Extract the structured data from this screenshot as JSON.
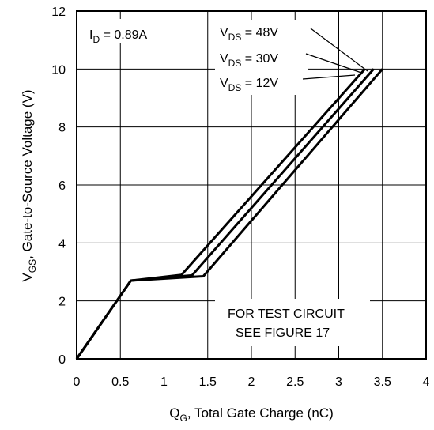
{
  "chart_data": {
    "type": "line",
    "title": "",
    "xlabel": "Q",
    "xlabel_sub": "G",
    "xlabel_rest": ", Total Gate Charge (nC)",
    "ylabel": "V",
    "ylabel_sub": "GS",
    "ylabel_rest": ", Gate-to-Source Voltage (V)",
    "xlim": [
      0,
      4
    ],
    "ylim": [
      0,
      12
    ],
    "grid": true,
    "x_ticks": [
      "0",
      "0.5",
      "1",
      "1.5",
      "2",
      "2.5",
      "3",
      "3.5",
      "4"
    ],
    "y_ticks": [
      "0",
      "2",
      "4",
      "6",
      "8",
      "10",
      "12"
    ],
    "condition": {
      "main": "I",
      "sub": "D",
      "rest": " = 0.89A"
    },
    "test_note": [
      "FOR TEST CIRCUIT",
      "SEE FIGURE 17"
    ],
    "series": [
      {
        "name": "V_DS = 48V",
        "label_main": "V",
        "label_sub": "DS",
        "label_rest": " = 48V",
        "x": [
          0,
          0.62,
          1.2,
          3.3
        ],
        "y": [
          0,
          2.7,
          2.9,
          10
        ]
      },
      {
        "name": "V_DS = 30V",
        "label_main": "V",
        "label_sub": "DS",
        "label_rest": " = 30V",
        "x": [
          0,
          0.62,
          1.32,
          3.4
        ],
        "y": [
          0,
          2.7,
          2.88,
          10
        ]
      },
      {
        "name": "V_DS = 12V",
        "label_main": "V",
        "label_sub": "DS",
        "label_rest": " = 12V",
        "x": [
          0,
          0.62,
          1.45,
          3.5
        ],
        "y": [
          0,
          2.7,
          2.85,
          10
        ]
      }
    ]
  }
}
